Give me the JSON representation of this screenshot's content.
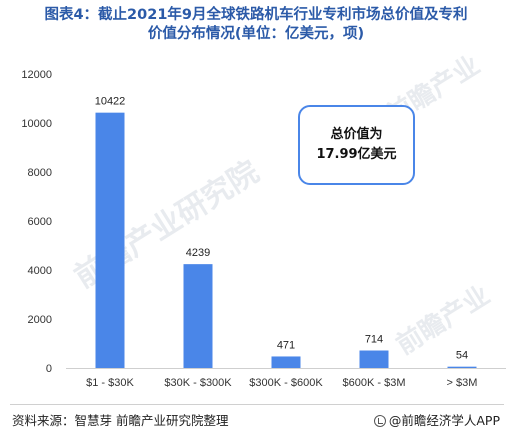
{
  "title": {
    "line1": "图表4：截止2021年9月全球铁路机车行业专利市场总价值及专利",
    "line2": "价值分布情况(单位：亿美元，项)"
  },
  "callout": {
    "line1": "总价值为",
    "line2": "17.99亿美元"
  },
  "footer": {
    "source": "资料来源：智慧芽 前瞻产业研究院整理",
    "brand": "@前瞻经济学人APP"
  },
  "watermark": {
    "text1": "前瞻产业研究院",
    "text2": "前瞻产业"
  },
  "colors": {
    "bar": "#4a86e8",
    "title": "#2b5aa8"
  },
  "chart_data": {
    "type": "bar",
    "title": "图表4：截止2021年9月全球铁路机车行业专利市场总价值及专利价值分布情况(单位：亿美元，项)",
    "xlabel": "",
    "ylabel": "",
    "categories": [
      "$1 - $30K",
      "$30K - $300K",
      "$300K - $600K",
      "$600K - $3M",
      "> $3M"
    ],
    "values": [
      10422,
      4239,
      471,
      714,
      54
    ],
    "data_labels": [
      "10422",
      "4239",
      "471",
      "714",
      "54"
    ],
    "ylim": [
      0,
      12000
    ],
    "yticks": [
      0,
      2000,
      4000,
      6000,
      8000,
      10000,
      12000
    ],
    "ytick_labels": [
      "0",
      "2000",
      "4000",
      "6000",
      "8000",
      "10000",
      "12000"
    ],
    "grid": false,
    "legend": "none"
  }
}
